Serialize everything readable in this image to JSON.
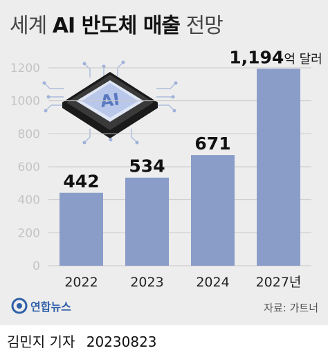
{
  "title": {
    "prefix": "세계",
    "highlight": "AI 반도체 매출",
    "suffix": "전망"
  },
  "chart_data": {
    "type": "bar",
    "categories": [
      "2022",
      "2023",
      "2024",
      "2027년"
    ],
    "values": [
      442,
      534,
      671,
      1194
    ],
    "value_labels": [
      "442",
      "534",
      "671",
      "1,194"
    ],
    "unit": "억 달러",
    "ylim": [
      0,
      1200
    ],
    "yticks": [
      0,
      200,
      400,
      600,
      800,
      1000,
      1200
    ],
    "grid": true,
    "bar_color": "#8a9dc9"
  },
  "logo": {
    "name": "연합뉴스"
  },
  "source": "자료: 가트너",
  "byline": {
    "author": "김민지 기자",
    "date": "20230823"
  },
  "colors": {
    "background": "#ededed",
    "bar": "#8a9dc9",
    "brand": "#2f5fa8"
  }
}
